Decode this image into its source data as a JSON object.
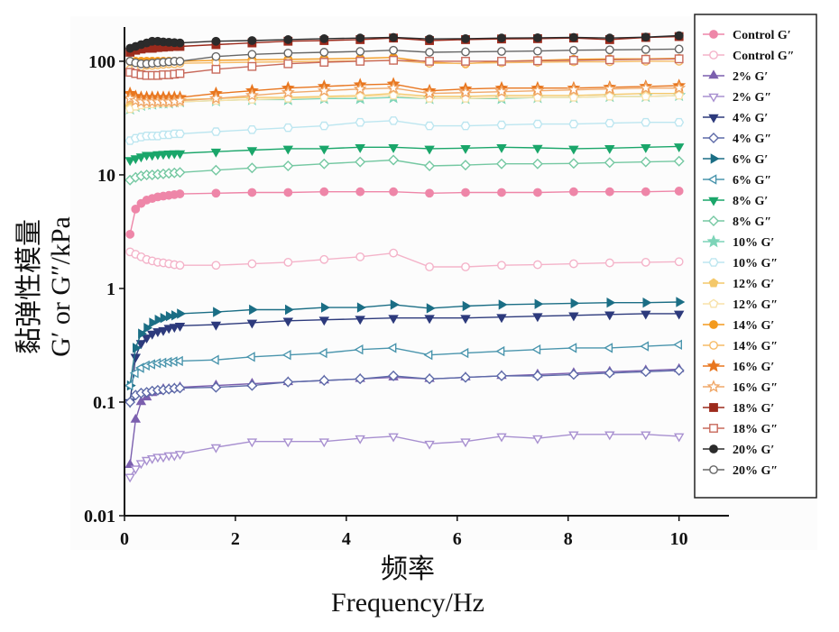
{
  "chart_data": {
    "type": "line",
    "title": "",
    "xlabel_cn": "频率",
    "xlabel": "Frequency/Hz",
    "ylabel_cn": "黏弹性模量",
    "ylabel": "G′ or G″/kPa",
    "xlim": [
      0,
      10.9
    ],
    "ylim": [
      0.01,
      200
    ],
    "yscale": "log",
    "xticks": [
      0,
      2,
      4,
      6,
      8,
      10
    ],
    "xtick_labels": [
      "0",
      "2",
      "4",
      "6",
      "8",
      "10"
    ],
    "yticks": [
      0.01,
      0.1,
      1,
      10,
      100
    ],
    "ytick_labels": [
      "0.01",
      "0.1",
      "1",
      "10",
      "100"
    ],
    "grid": false,
    "legend_position": "right",
    "x": [
      0.1,
      0.2,
      0.3,
      0.4,
      0.5,
      0.6,
      0.7,
      0.8,
      0.9,
      1.0,
      1.65,
      2.3,
      2.95,
      3.6,
      4.25,
      4.85,
      5.5,
      6.15,
      6.8,
      7.45,
      8.1,
      8.75,
      9.4,
      10.0
    ],
    "series": [
      {
        "name": "Control G′",
        "color": "#ee86a8",
        "marker": "circle",
        "filled": true,
        "values": [
          3.0,
          5.0,
          5.6,
          6.0,
          6.2,
          6.4,
          6.5,
          6.6,
          6.7,
          6.8,
          6.9,
          7.0,
          7.0,
          7.1,
          7.1,
          7.1,
          6.9,
          7.0,
          7.0,
          7.0,
          7.1,
          7.1,
          7.1,
          7.2
        ]
      },
      {
        "name": "Control G″",
        "color": "#f4b3c9",
        "marker": "circle",
        "filled": false,
        "values": [
          2.1,
          2.0,
          1.9,
          1.8,
          1.75,
          1.7,
          1.68,
          1.65,
          1.62,
          1.6,
          1.6,
          1.65,
          1.7,
          1.8,
          1.9,
          2.05,
          1.55,
          1.55,
          1.6,
          1.62,
          1.65,
          1.68,
          1.7,
          1.72
        ]
      },
      {
        "name": "2% G′",
        "color": "#7b5fae",
        "marker": "triangle-up",
        "filled": true,
        "values": [
          0.028,
          0.07,
          0.1,
          0.11,
          0.12,
          0.125,
          0.13,
          0.13,
          0.132,
          0.135,
          0.14,
          0.145,
          0.15,
          0.155,
          0.16,
          0.165,
          0.16,
          0.165,
          0.17,
          0.175,
          0.18,
          0.185,
          0.19,
          0.195
        ]
      },
      {
        "name": "2% G″",
        "color": "#a890d0",
        "marker": "triangle-down",
        "filled": false,
        "values": [
          0.022,
          0.026,
          0.029,
          0.031,
          0.032,
          0.033,
          0.033,
          0.034,
          0.034,
          0.035,
          0.04,
          0.045,
          0.045,
          0.045,
          0.048,
          0.05,
          0.043,
          0.045,
          0.05,
          0.048,
          0.052,
          0.052,
          0.052,
          0.05
        ]
      },
      {
        "name": "4% G′",
        "color": "#2d3a7c",
        "marker": "triangle-down",
        "filled": true,
        "values": [
          0.1,
          0.25,
          0.33,
          0.37,
          0.4,
          0.42,
          0.43,
          0.45,
          0.46,
          0.47,
          0.48,
          0.5,
          0.52,
          0.53,
          0.54,
          0.55,
          0.55,
          0.55,
          0.56,
          0.57,
          0.58,
          0.59,
          0.6,
          0.6
        ]
      },
      {
        "name": "4% G″",
        "color": "#5d6aa8",
        "marker": "diamond",
        "filled": false,
        "values": [
          0.1,
          0.115,
          0.12,
          0.122,
          0.125,
          0.127,
          0.128,
          0.13,
          0.132,
          0.133,
          0.135,
          0.14,
          0.15,
          0.155,
          0.16,
          0.17,
          0.16,
          0.165,
          0.17,
          0.17,
          0.175,
          0.18,
          0.185,
          0.19
        ]
      },
      {
        "name": "6% G′",
        "color": "#1b6e85",
        "marker": "triangle-right",
        "filled": true,
        "values": [
          0.14,
          0.3,
          0.4,
          0.45,
          0.5,
          0.53,
          0.55,
          0.57,
          0.58,
          0.6,
          0.62,
          0.65,
          0.65,
          0.68,
          0.68,
          0.72,
          0.67,
          0.7,
          0.72,
          0.73,
          0.74,
          0.75,
          0.75,
          0.76
        ]
      },
      {
        "name": "6% G″",
        "color": "#4a95ad",
        "marker": "triangle-left",
        "filled": false,
        "values": [
          0.14,
          0.18,
          0.2,
          0.21,
          0.215,
          0.22,
          0.222,
          0.225,
          0.228,
          0.23,
          0.235,
          0.25,
          0.26,
          0.27,
          0.29,
          0.3,
          0.26,
          0.27,
          0.28,
          0.29,
          0.3,
          0.3,
          0.31,
          0.32
        ]
      },
      {
        "name": "8% G′",
        "color": "#1aa66a",
        "marker": "triangle-down",
        "filled": true,
        "values": [
          13.5,
          14.0,
          14.5,
          15.0,
          15.0,
          15.2,
          15.3,
          15.4,
          15.5,
          15.5,
          16,
          16.5,
          17,
          17,
          17.5,
          17.5,
          17,
          17.2,
          17.5,
          17.3,
          17,
          17.2,
          17.5,
          17.8
        ]
      },
      {
        "name": "8% G″",
        "color": "#75c8a2",
        "marker": "diamond",
        "filled": false,
        "values": [
          9.0,
          9.5,
          9.8,
          10.0,
          10.0,
          10.1,
          10.2,
          10.3,
          10.4,
          10.5,
          11,
          11.5,
          12,
          12.5,
          13,
          13.5,
          12,
          12.2,
          12.5,
          12.5,
          12.6,
          12.8,
          13,
          13.2
        ]
      },
      {
        "name": "10% G′",
        "color": "#7dd4b8",
        "marker": "star",
        "filled": true,
        "values": [
          38,
          40,
          41,
          42,
          42,
          43,
          43,
          43,
          44,
          44,
          45,
          46,
          46,
          47,
          47,
          48,
          47,
          47,
          47,
          48,
          48,
          49,
          49,
          50
        ]
      },
      {
        "name": "10% G″",
        "color": "#bde6f0",
        "marker": "hexagon",
        "filled": false,
        "values": [
          20,
          21,
          21.5,
          22,
          22,
          22,
          22.5,
          22.5,
          23,
          23,
          24,
          25,
          26,
          27,
          29,
          30,
          27,
          27,
          27.5,
          28,
          28,
          28.5,
          29,
          29
        ]
      },
      {
        "name": "12% G′",
        "color": "#f4c86a",
        "marker": "pentagon",
        "filled": true,
        "values": [
          40,
          42,
          43,
          44,
          44,
          45,
          45,
          46,
          46,
          46,
          47,
          48,
          48,
          49,
          50,
          52,
          49,
          49,
          50,
          50,
          50,
          51,
          52,
          52
        ]
      },
      {
        "name": "12% G″",
        "color": "#f8e2aa",
        "marker": "pentagon",
        "filled": false,
        "values": [
          38,
          40,
          41,
          42,
          42,
          43,
          43,
          43,
          44,
          44,
          45,
          46,
          47,
          48,
          49,
          50,
          47,
          47,
          48,
          48,
          48,
          49,
          49,
          50
        ]
      },
      {
        "name": "14% G′",
        "color": "#f39a1e",
        "marker": "circle",
        "filled": true,
        "values": [
          100,
          100,
          100,
          100,
          100,
          100,
          100,
          100,
          100,
          100,
          102,
          103,
          104,
          105,
          106,
          108,
          98,
          95,
          100,
          102,
          104,
          105,
          105,
          106
        ]
      },
      {
        "name": "14% G″",
        "color": "#f6bb66",
        "marker": "circle",
        "filled": false,
        "values": [
          85,
          88,
          90,
          92,
          92,
          93,
          94,
          95,
          95,
          96,
          97,
          98,
          99,
          100,
          101,
          102,
          96,
          96,
          97,
          98,
          99,
          99,
          100,
          100
        ]
      },
      {
        "name": "16% G′",
        "color": "#e8761f",
        "marker": "star",
        "filled": true,
        "values": [
          52,
          49,
          48,
          48,
          48,
          48,
          48,
          48,
          48,
          48,
          52,
          55,
          58,
          60,
          62,
          63,
          55,
          57,
          58,
          58,
          58,
          59,
          60,
          61
        ]
      },
      {
        "name": "16% G″",
        "color": "#f0a869",
        "marker": "star",
        "filled": false,
        "values": [
          47,
          45,
          44,
          44,
          44,
          44,
          44,
          44,
          44,
          45,
          47,
          50,
          53,
          55,
          57,
          58,
          52,
          53,
          54,
          55,
          56,
          57,
          58,
          58
        ]
      },
      {
        "name": "18% G′",
        "color": "#9c2a1c",
        "marker": "square",
        "filled": true,
        "values": [
          120,
          125,
          128,
          130,
          130,
          132,
          133,
          134,
          135,
          135,
          140,
          145,
          150,
          152,
          155,
          160,
          152,
          155,
          157,
          158,
          160,
          155,
          162,
          165
        ]
      },
      {
        "name": "18% G″",
        "color": "#c86a5c",
        "marker": "square",
        "filled": false,
        "values": [
          80,
          78,
          76,
          75,
          75,
          75,
          76,
          76,
          77,
          78,
          85,
          90,
          95,
          98,
          100,
          102,
          100,
          100,
          100,
          101,
          102,
          103,
          104,
          105
        ]
      },
      {
        "name": "20% G′",
        "color": "#2b2b2b",
        "marker": "circle",
        "filled": true,
        "values": [
          130,
          135,
          140,
          145,
          150,
          150,
          148,
          147,
          146,
          145,
          150,
          152,
          155,
          158,
          160,
          162,
          157,
          158,
          160,
          161,
          162,
          160,
          163,
          168
        ]
      },
      {
        "name": "20% G″",
        "color": "#666666",
        "marker": "circle",
        "filled": false,
        "values": [
          100,
          97,
          95,
          95,
          96,
          97,
          98,
          99,
          100,
          100,
          110,
          115,
          118,
          120,
          122,
          125,
          120,
          121,
          122,
          123,
          125,
          126,
          127,
          128
        ]
      }
    ]
  }
}
